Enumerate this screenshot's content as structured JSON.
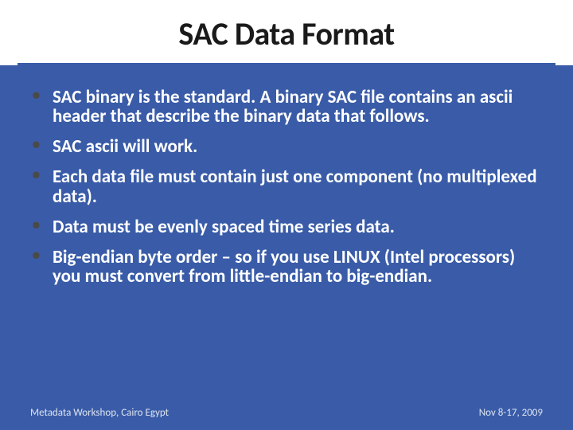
{
  "title": "SAC Data Format",
  "background_color": "#3a5ca8",
  "title_area_bg": "#ffffff",
  "title_color": "#1a1a1a",
  "title_fontsize": 40,
  "body_text_color": "#ffffff",
  "body_fontsize": 23,
  "bullet_marker_color": "#4a4a4a",
  "divider_color": "#3a5ca8",
  "bullets": [
    "SAC binary is the standard.  A binary SAC file contains an ascii header that  describe the binary data that follows.",
    "SAC ascii will work.",
    "Each data file must contain just one component (no multiplexed data).",
    "Data must be evenly spaced time series data.",
    "Big-endian byte order – so if you use LINUX (Intel processors) you must convert from little-endian to big-endian."
  ],
  "footer_left": "Metadata Workshop, Cairo Egypt",
  "footer_right": "Nov 8-17, 2009",
  "footer_color": "#dce3f0",
  "footer_fontsize": 13
}
